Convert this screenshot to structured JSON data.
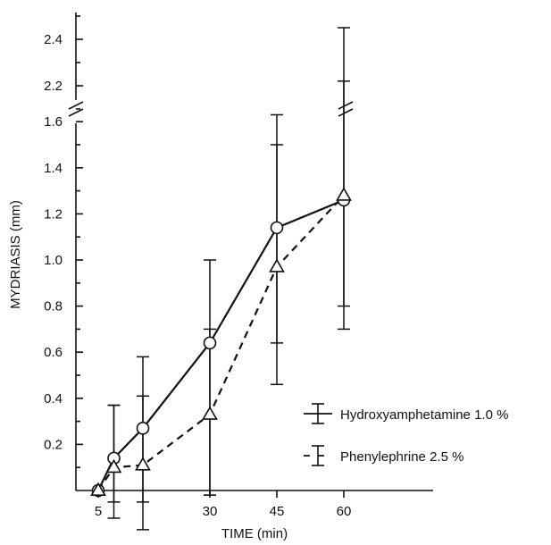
{
  "chart_data": {
    "type": "line",
    "xlabel": "TIME (min)",
    "ylabel": "MYDRIASIS (mm)",
    "x_ticks": [
      "5",
      "30",
      "45",
      "60"
    ],
    "y_ticks_lower": [
      "0.2",
      "0.4",
      "0.6",
      "0.8",
      "1.0",
      "1.2",
      "1.4",
      "1.6"
    ],
    "y_ticks_upper": [
      "2.2",
      "2.4"
    ],
    "xlim": [
      0,
      80
    ],
    "ylim_lower": [
      0,
      1.62
    ],
    "ylim_upper_break": [
      2.1,
      2.5
    ],
    "axis_break": "y-axis between 1.6 and 2.2",
    "legend_position": "right",
    "series": [
      {
        "name": "Hydroxyamphetamine 1.0 %",
        "marker": "circle",
        "line_style": "solid",
        "x": [
          5,
          8.5,
          15,
          30,
          45,
          60
        ],
        "y": [
          0.0,
          0.14,
          0.27,
          0.64,
          1.14,
          1.26
        ],
        "y_low": [
          null,
          -0.05,
          -0.05,
          -0.02,
          0.64,
          0.8
        ],
        "y_high": [
          null,
          0.37,
          0.41,
          1.0,
          1.5,
          2.22
        ]
      },
      {
        "name": "Phenylephrine 2.5 %",
        "marker": "triangle",
        "line_style": "dashed",
        "x": [
          5,
          8.5,
          15,
          30,
          45,
          60
        ],
        "y": [
          0.0,
          0.1,
          0.11,
          0.33,
          0.97,
          1.28
        ],
        "y_low": [
          null,
          -0.12,
          -0.17,
          -0.02,
          0.46,
          0.7
        ],
        "y_high": [
          null,
          0.37,
          0.58,
          0.7,
          1.63,
          2.45
        ]
      }
    ]
  }
}
